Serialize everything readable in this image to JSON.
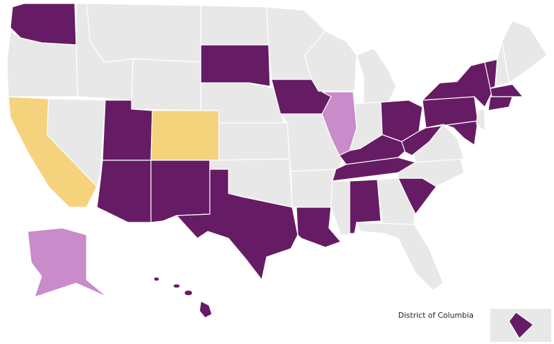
{
  "inset": {
    "label": "District of Columbia"
  }
}
